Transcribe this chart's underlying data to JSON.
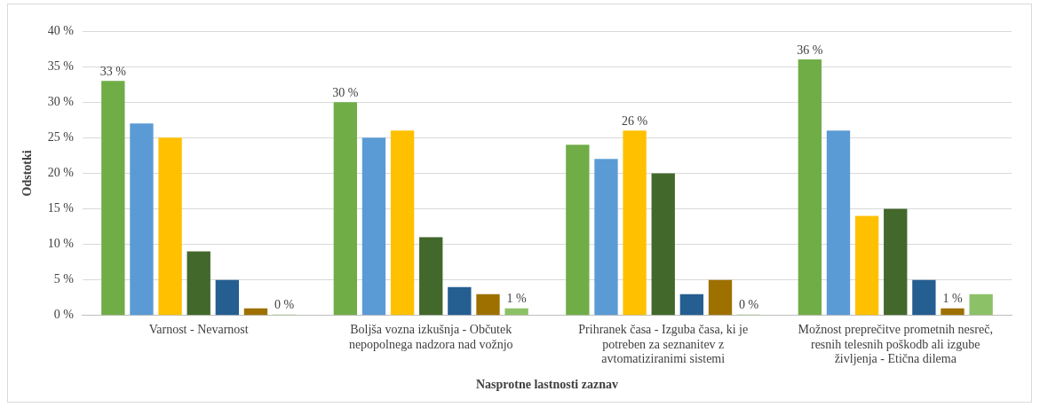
{
  "chart_data": {
    "type": "bar",
    "xlabel": "Nasprotne lastnosti zaznav",
    "ylabel": "Odstotki",
    "categories": [
      "Varnost - Nevarnost",
      "Boljša vozna izkušnja - Občutek nepopolnega nadzora nad vožnjo",
      "Prihranek časa - Izguba časa, ki je potreben za seznanitev z avtomatiziranimi sistemi",
      "Možnost preprečitve prometnih nesreč, resnih telesnih poškodb ali izgube življenja - Etična dilema"
    ],
    "series": [
      {
        "color": "#70ad47",
        "values": [
          33,
          30,
          24,
          36
        ],
        "value_labels": [
          "33 %",
          "30 %",
          null,
          "36 %"
        ]
      },
      {
        "color": "#5b9bd5",
        "values": [
          27,
          25,
          22,
          26
        ]
      },
      {
        "color": "#ffc000",
        "values": [
          25,
          26,
          26,
          14
        ],
        "value_labels": [
          null,
          null,
          "26 %",
          null
        ]
      },
      {
        "color": "#43682b",
        "values": [
          9,
          11,
          20,
          15
        ]
      },
      {
        "color": "#255e91",
        "values": [
          5,
          4,
          3,
          5
        ]
      },
      {
        "color": "#9e7000",
        "values": [
          1,
          3,
          5,
          1
        ],
        "value_labels": [
          null,
          null,
          null,
          "1 %"
        ]
      },
      {
        "color": "#8cc168",
        "values": [
          0,
          1,
          0,
          3
        ],
        "value_labels": [
          "0 %",
          "1 %",
          "0 %",
          null
        ]
      }
    ],
    "ylim": [
      0,
      40
    ],
    "yticks": [
      {
        "value": 0,
        "label": "0 %"
      },
      {
        "value": 5,
        "label": "5 %"
      },
      {
        "value": 10,
        "label": "10 %"
      },
      {
        "value": 15,
        "label": "15 %"
      },
      {
        "value": 20,
        "label": "20 %"
      },
      {
        "value": 25,
        "label": "25 %"
      },
      {
        "value": 30,
        "label": "30 %"
      },
      {
        "value": 35,
        "label": "35 %"
      },
      {
        "value": 40,
        "label": "40 %"
      }
    ],
    "grid": "y",
    "legend": false
  }
}
